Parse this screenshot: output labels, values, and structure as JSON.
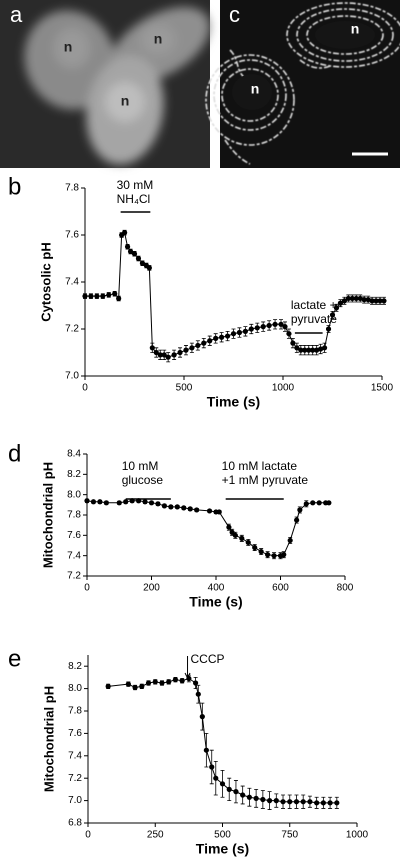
{
  "micrographs": [
    {
      "label": "a",
      "markers": [
        "n",
        "n",
        "n"
      ]
    },
    {
      "label": "c",
      "markers": [
        "n",
        "n"
      ]
    }
  ],
  "chart_data": [
    {
      "type": "line",
      "panel": "b",
      "y_label": "Cytosolic pH",
      "x_label": "Time (s)",
      "xlim": [
        0,
        1500
      ],
      "xticks": [
        0,
        500,
        1000,
        1500
      ],
      "ylim": [
        7.0,
        7.8
      ],
      "yticks": [
        {
          "value": 7.0,
          "label": "7.0"
        },
        7.2,
        7.4,
        7.6,
        7.8
      ],
      "color": "#000000",
      "x": [
        0,
        30,
        60,
        90,
        120,
        150,
        170,
        185,
        200,
        215,
        230,
        250,
        270,
        290,
        310,
        325,
        340,
        360,
        380,
        400,
        420,
        450,
        480,
        510,
        540,
        570,
        600,
        630,
        660,
        690,
        720,
        750,
        780,
        810,
        840,
        870,
        900,
        930,
        960,
        990,
        1010,
        1030,
        1050,
        1070,
        1090,
        1110,
        1130,
        1150,
        1170,
        1190,
        1210,
        1230,
        1250,
        1270,
        1290,
        1310,
        1330,
        1350,
        1370,
        1390,
        1410,
        1430,
        1450,
        1470,
        1490,
        1510
      ],
      "values": [
        7.34,
        7.34,
        7.34,
        7.34,
        7.345,
        7.35,
        7.33,
        7.6,
        7.61,
        7.55,
        7.53,
        7.52,
        7.5,
        7.48,
        7.47,
        7.46,
        7.12,
        7.1,
        7.09,
        7.09,
        7.08,
        7.09,
        7.1,
        7.11,
        7.12,
        7.13,
        7.14,
        7.15,
        7.16,
        7.165,
        7.17,
        7.18,
        7.185,
        7.19,
        7.2,
        7.205,
        7.21,
        7.215,
        7.22,
        7.22,
        7.21,
        7.18,
        7.14,
        7.12,
        7.11,
        7.11,
        7.11,
        7.11,
        7.11,
        7.115,
        7.12,
        7.2,
        7.26,
        7.29,
        7.31,
        7.32,
        7.33,
        7.33,
        7.33,
        7.33,
        7.325,
        7.325,
        7.32,
        7.32,
        7.32,
        7.32
      ],
      "errors": [
        0.01,
        0.01,
        0.01,
        0.01,
        0.01,
        0.01,
        0.01,
        0.01,
        0.01,
        0.01,
        0.01,
        0.01,
        0.01,
        0.01,
        0.01,
        0.01,
        0.02,
        0.02,
        0.02,
        0.02,
        0.02,
        0.02,
        0.02,
        0.02,
        0.02,
        0.02,
        0.02,
        0.02,
        0.02,
        0.02,
        0.02,
        0.02,
        0.02,
        0.02,
        0.02,
        0.02,
        0.02,
        0.02,
        0.02,
        0.02,
        0.02,
        0.02,
        0.02,
        0.02,
        0.02,
        0.02,
        0.02,
        0.02,
        0.02,
        0.02,
        0.02,
        0.015,
        0.015,
        0.015,
        0.015,
        0.015,
        0.015,
        0.015,
        0.015,
        0.015,
        0.015,
        0.015,
        0.015,
        0.015,
        0.015,
        0.015
      ],
      "annotations": [
        {
          "lines": [
            "30 mM",
            "NH₄Cl"
          ],
          "span": [
            180,
            330
          ]
        },
        {
          "lines": [
            "lactate +",
            "pyruvate"
          ],
          "span": [
            1060,
            1200
          ]
        }
      ]
    },
    {
      "type": "line",
      "panel": "d",
      "y_label": "Mitochondrial pH",
      "x_label": "Time (s)",
      "xlim": [
        0,
        800
      ],
      "xticks": [
        0,
        200,
        400,
        600,
        800
      ],
      "ylim": [
        7.2,
        8.4
      ],
      "yticks": [
        7.2,
        7.4,
        7.6,
        7.8,
        {
          "value": 8.0,
          "label": "8.0"
        },
        8.2,
        8.4
      ],
      "color": "#000000",
      "x": [
        0,
        20,
        40,
        60,
        100,
        120,
        140,
        160,
        180,
        200,
        220,
        240,
        260,
        280,
        300,
        320,
        340,
        380,
        400,
        410,
        440,
        450,
        460,
        480,
        500,
        520,
        540,
        560,
        580,
        600,
        610,
        630,
        650,
        660,
        680,
        700,
        720,
        740,
        750
      ],
      "values": [
        7.94,
        7.93,
        7.93,
        7.92,
        7.92,
        7.93,
        7.94,
        7.94,
        7.93,
        7.92,
        7.91,
        7.89,
        7.88,
        7.88,
        7.87,
        7.86,
        7.85,
        7.84,
        7.83,
        7.83,
        7.68,
        7.63,
        7.6,
        7.57,
        7.53,
        7.48,
        7.44,
        7.41,
        7.4,
        7.4,
        7.41,
        7.55,
        7.75,
        7.85,
        7.91,
        7.92,
        7.92,
        7.92,
        7.92
      ],
      "errors": [
        0.015,
        0.015,
        0.015,
        0.015,
        0.015,
        0.015,
        0.015,
        0.015,
        0.015,
        0.015,
        0.015,
        0.015,
        0.015,
        0.015,
        0.015,
        0.015,
        0.015,
        0.015,
        0.015,
        0.015,
        0.03,
        0.03,
        0.03,
        0.03,
        0.03,
        0.03,
        0.03,
        0.03,
        0.03,
        0.03,
        0.03,
        0.03,
        0.03,
        0.03,
        0.03,
        0.01,
        0.01,
        0.01,
        0.01
      ],
      "annotations": [
        {
          "lines": [
            "10 mM",
            "glucose"
          ],
          "span": [
            120,
            260
          ]
        },
        {
          "lines": [
            "10 mM lactate",
            "+1 mM pyruvate"
          ],
          "span": [
            430,
            610
          ]
        }
      ]
    },
    {
      "type": "line",
      "panel": "e",
      "y_label": "Mitochondrial pH",
      "x_label": "Time (s)",
      "xlim": [
        0,
        1000
      ],
      "xticks": [
        0,
        250,
        500,
        750,
        1000
      ],
      "ylim": [
        6.8,
        8.3
      ],
      "yticks": [
        6.8,
        {
          "value": 7.0,
          "label": "7.0"
        },
        7.2,
        7.4,
        7.6,
        7.8,
        {
          "value": 8.0,
          "label": "8.0"
        },
        8.2
      ],
      "color": "#000000",
      "x": [
        75,
        150,
        175,
        200,
        225,
        250,
        275,
        300,
        325,
        350,
        375,
        400,
        410,
        425,
        440,
        460,
        475,
        500,
        525,
        550,
        575,
        600,
        625,
        650,
        675,
        700,
        725,
        750,
        775,
        800,
        825,
        850,
        875,
        900,
        925
      ],
      "values": [
        8.02,
        8.04,
        8.01,
        8.02,
        8.05,
        8.06,
        8.05,
        8.06,
        8.08,
        8.07,
        8.09,
        8.05,
        7.95,
        7.75,
        7.45,
        7.3,
        7.2,
        7.15,
        7.1,
        7.08,
        7.05,
        7.03,
        7.02,
        7.01,
        7.0,
        7.0,
        6.99,
        6.99,
        6.99,
        6.99,
        6.99,
        6.98,
        6.98,
        6.98,
        6.98
      ],
      "errors": [
        0.02,
        0.02,
        0.02,
        0.02,
        0.02,
        0.02,
        0.02,
        0.02,
        0.02,
        0.02,
        0.03,
        0.05,
        0.08,
        0.12,
        0.15,
        0.15,
        0.15,
        0.12,
        0.1,
        0.1,
        0.08,
        0.08,
        0.08,
        0.08,
        0.08,
        0.06,
        0.06,
        0.06,
        0.06,
        0.06,
        0.05,
        0.05,
        0.05,
        0.05,
        0.05
      ],
      "annotations": [
        {
          "lines": [
            "CCCP"
          ],
          "x": 370
        }
      ]
    }
  ]
}
